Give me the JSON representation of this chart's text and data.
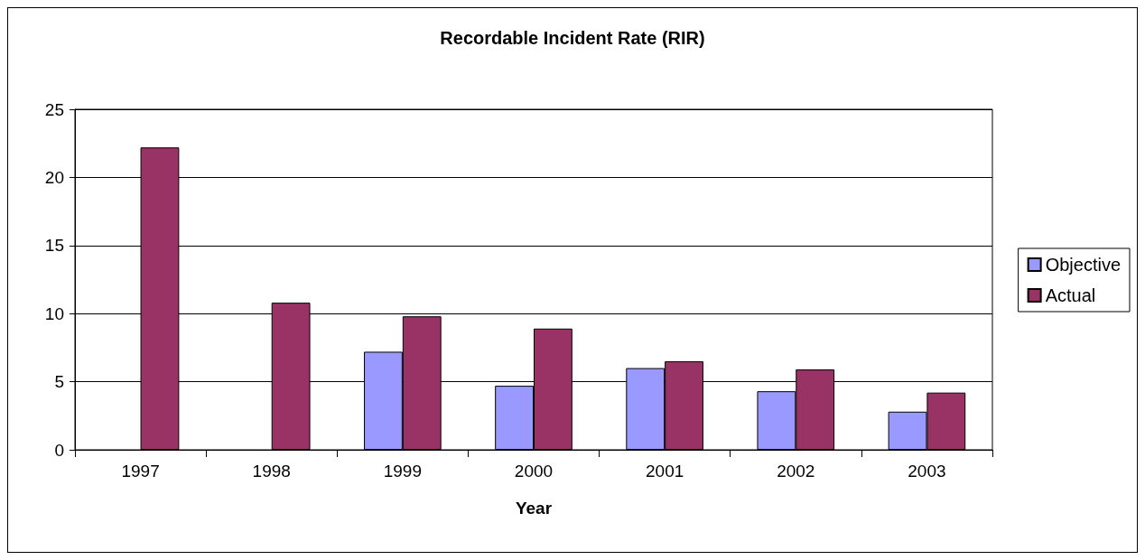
{
  "chart_data": {
    "type": "bar",
    "title": "Recordable Incident Rate (RIR)",
    "xlabel": "Year",
    "categories": [
      "1997",
      "1998",
      "1999",
      "2000",
      "2001",
      "2002",
      "2003"
    ],
    "series": [
      {
        "name": "Objective",
        "color": "#9999ff",
        "values": [
          null,
          null,
          7.2,
          4.7,
          6.0,
          4.3,
          2.8
        ]
      },
      {
        "name": "Actual",
        "color": "#993366",
        "values": [
          22.2,
          10.8,
          9.8,
          8.9,
          6.5,
          5.9,
          4.2
        ]
      }
    ],
    "ylim": [
      0,
      25
    ],
    "yticks": [
      0,
      5,
      10,
      15,
      20,
      25
    ],
    "grid": "y",
    "legend": "right"
  }
}
